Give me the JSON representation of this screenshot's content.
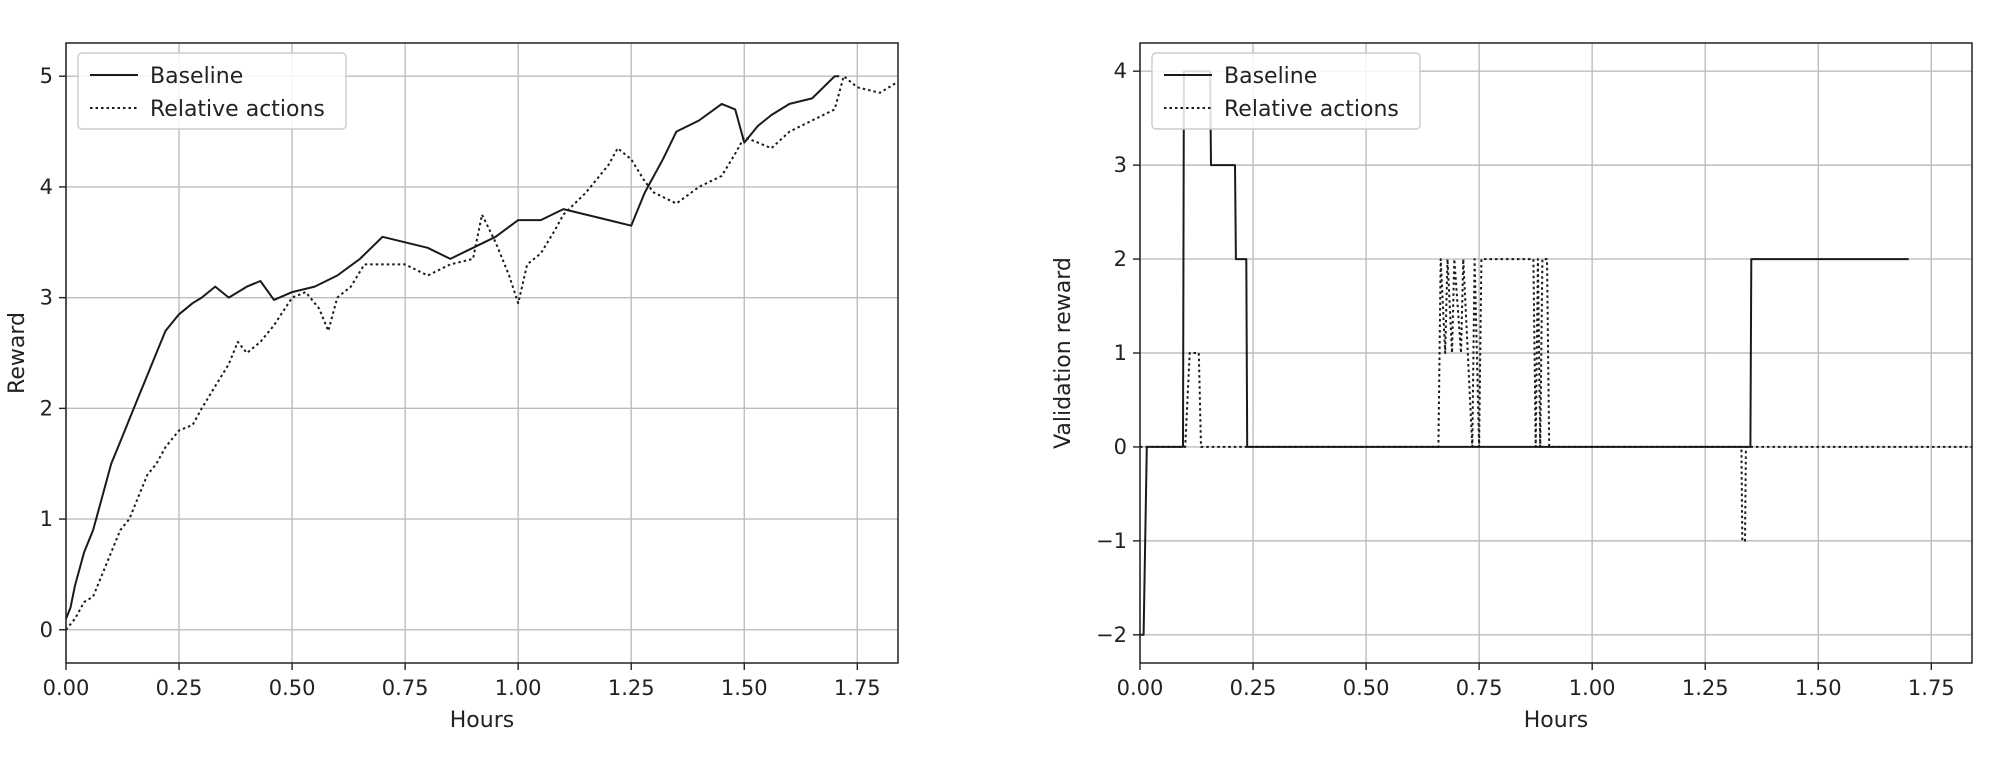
{
  "chart_data": [
    {
      "type": "line",
      "xlabel": "Hours",
      "ylabel": "Reward",
      "xlim": [
        0,
        1.84
      ],
      "ylim": [
        -0.3,
        5.3
      ],
      "xticks": [
        "0.00",
        "0.25",
        "0.50",
        "0.75",
        "1.00",
        "1.25",
        "1.50",
        "1.75"
      ],
      "yticks": [
        "0",
        "1",
        "2",
        "3",
        "4",
        "5"
      ],
      "grid": true,
      "legend": "top-left",
      "series": [
        {
          "name": "Baseline",
          "style": "solid",
          "x": [
            0.0,
            0.01,
            0.02,
            0.04,
            0.06,
            0.08,
            0.1,
            0.12,
            0.14,
            0.16,
            0.18,
            0.2,
            0.22,
            0.25,
            0.28,
            0.3,
            0.33,
            0.36,
            0.4,
            0.43,
            0.46,
            0.5,
            0.55,
            0.6,
            0.65,
            0.7,
            0.75,
            0.8,
            0.85,
            0.9,
            0.95,
            1.0,
            1.05,
            1.1,
            1.15,
            1.2,
            1.25,
            1.28,
            1.32,
            1.35,
            1.4,
            1.45,
            1.48,
            1.5,
            1.53,
            1.56,
            1.6,
            1.65,
            1.7,
            1.71
          ],
          "y": [
            0.1,
            0.2,
            0.4,
            0.7,
            0.9,
            1.2,
            1.5,
            1.7,
            1.9,
            2.1,
            2.3,
            2.5,
            2.7,
            2.85,
            2.95,
            3.0,
            3.1,
            3.0,
            3.1,
            3.15,
            2.98,
            3.05,
            3.1,
            3.2,
            3.35,
            3.55,
            3.5,
            3.45,
            3.35,
            3.45,
            3.55,
            3.7,
            3.7,
            3.8,
            3.75,
            3.7,
            3.65,
            3.95,
            4.25,
            4.5,
            4.6,
            4.75,
            4.7,
            4.4,
            4.55,
            4.65,
            4.75,
            4.8,
            5.0,
            5.0
          ]
        },
        {
          "name": "Relative actions",
          "style": "dotted",
          "x": [
            0.0,
            0.02,
            0.04,
            0.06,
            0.08,
            0.1,
            0.12,
            0.14,
            0.16,
            0.18,
            0.2,
            0.22,
            0.25,
            0.28,
            0.3,
            0.33,
            0.36,
            0.38,
            0.4,
            0.43,
            0.46,
            0.5,
            0.53,
            0.56,
            0.58,
            0.6,
            0.63,
            0.66,
            0.7,
            0.75,
            0.8,
            0.85,
            0.9,
            0.92,
            0.95,
            0.98,
            1.0,
            1.02,
            1.05,
            1.08,
            1.1,
            1.15,
            1.2,
            1.22,
            1.25,
            1.28,
            1.3,
            1.35,
            1.4,
            1.45,
            1.48,
            1.5,
            1.53,
            1.56,
            1.6,
            1.65,
            1.7,
            1.72,
            1.75,
            1.8,
            1.84
          ],
          "y": [
            0.0,
            0.1,
            0.25,
            0.3,
            0.5,
            0.7,
            0.9,
            1.0,
            1.2,
            1.4,
            1.5,
            1.65,
            1.8,
            1.85,
            2.0,
            2.2,
            2.4,
            2.6,
            2.5,
            2.6,
            2.75,
            3.0,
            3.05,
            2.9,
            2.7,
            3.0,
            3.1,
            3.3,
            3.3,
            3.3,
            3.2,
            3.3,
            3.35,
            3.75,
            3.5,
            3.2,
            2.95,
            3.3,
            3.4,
            3.6,
            3.75,
            3.95,
            4.2,
            4.35,
            4.25,
            4.05,
            3.95,
            3.85,
            4.0,
            4.1,
            4.3,
            4.45,
            4.4,
            4.35,
            4.5,
            4.6,
            4.7,
            5.0,
            4.9,
            4.85,
            4.95
          ]
        }
      ]
    },
    {
      "type": "line",
      "xlabel": "Hours",
      "ylabel": "Validation reward",
      "xlim": [
        0,
        1.84
      ],
      "ylim": [
        -2.3,
        4.3
      ],
      "xticks": [
        "0.00",
        "0.25",
        "0.50",
        "0.75",
        "1.00",
        "1.25",
        "1.50",
        "1.75"
      ],
      "yticks": [
        "−2",
        "−1",
        "0",
        "1",
        "2",
        "3",
        "4"
      ],
      "grid": true,
      "legend": "top-left",
      "series": [
        {
          "name": "Baseline",
          "style": "solid",
          "x": [
            0.0,
            0.008,
            0.015,
            0.095,
            0.097,
            0.155,
            0.157,
            0.21,
            0.212,
            0.235,
            0.237,
            1.35,
            1.352,
            1.7
          ],
          "y": [
            -2.0,
            -2.0,
            0.0,
            0.0,
            4.0,
            4.0,
            3.0,
            3.0,
            2.0,
            2.0,
            0.0,
            0.0,
            2.0,
            2.0
          ]
        },
        {
          "name": "Relative actions",
          "style": "dotted",
          "x": [
            0.0,
            0.1,
            0.11,
            0.13,
            0.135,
            0.66,
            0.665,
            0.675,
            0.68,
            0.69,
            0.695,
            0.71,
            0.715,
            0.735,
            0.74,
            0.75,
            0.755,
            0.76,
            0.765,
            0.87,
            0.875,
            0.88,
            0.885,
            0.89,
            0.9,
            0.905,
            0.91,
            1.33,
            1.332,
            1.338,
            1.34,
            1.84
          ],
          "y": [
            0.0,
            0.0,
            1.0,
            1.0,
            0.0,
            0.0,
            2.0,
            1.0,
            2.0,
            1.0,
            2.0,
            1.0,
            2.0,
            0.0,
            2.0,
            0.0,
            2.0,
            2.0,
            2.0,
            2.0,
            0.0,
            2.0,
            0.0,
            2.0,
            2.0,
            0.0,
            0.0,
            0.0,
            -1.0,
            -1.0,
            0.0,
            0.0
          ]
        }
      ]
    }
  ]
}
